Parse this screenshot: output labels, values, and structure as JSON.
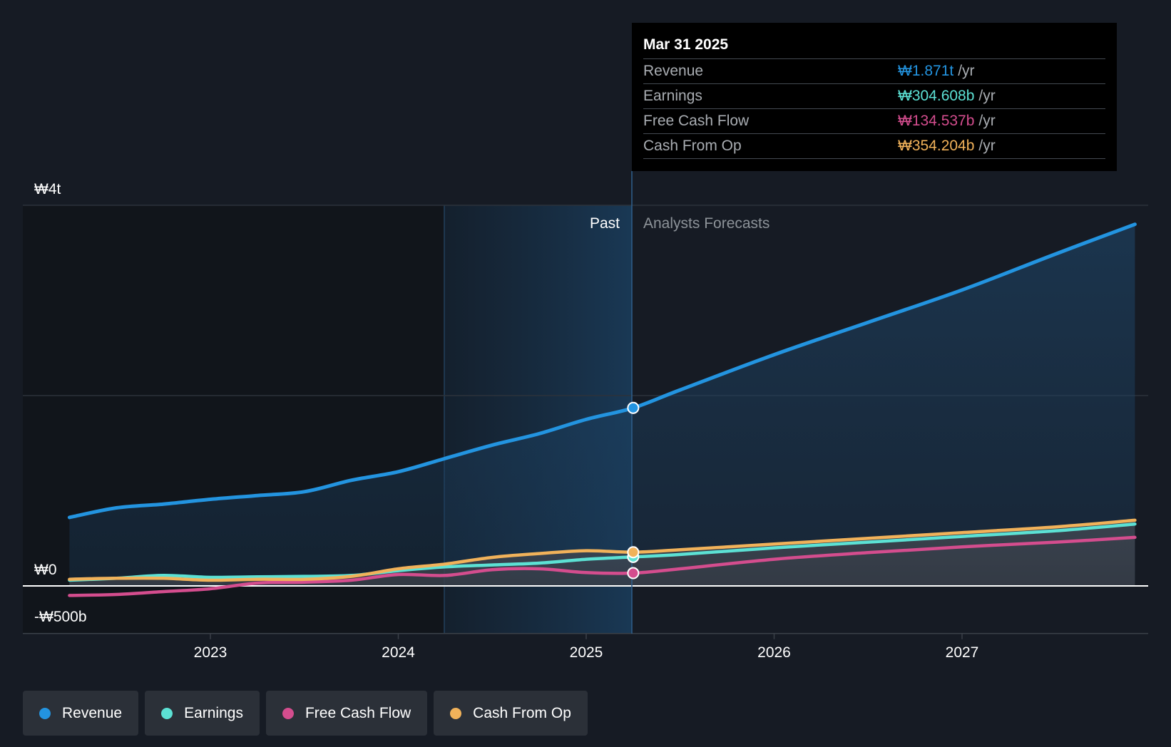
{
  "chart_data": {
    "type": "area",
    "x_ticks": [
      "2023",
      "2024",
      "2025",
      "2026",
      "2027"
    ],
    "y_ticks": [
      "₩4t",
      "₩0",
      "-₩500b"
    ],
    "ylim": [
      -500,
      4000
    ],
    "y_unit": "₩ billions",
    "past_label": "Past",
    "forecast_label": "Analysts Forecasts",
    "highlight_date": 2025.25,
    "series": [
      {
        "name": "Revenue",
        "color": "#2394e0",
        "points": [
          [
            2022.25,
            720
          ],
          [
            2022.5,
            820
          ],
          [
            2022.75,
            860
          ],
          [
            2023.0,
            910
          ],
          [
            2023.25,
            950
          ],
          [
            2023.5,
            990
          ],
          [
            2023.75,
            1110
          ],
          [
            2024.0,
            1200
          ],
          [
            2024.25,
            1340
          ],
          [
            2024.5,
            1480
          ],
          [
            2024.75,
            1600
          ],
          [
            2025.0,
            1750
          ],
          [
            2025.25,
            1871
          ],
          [
            2025.5,
            2060
          ],
          [
            2026.0,
            2430
          ],
          [
            2026.5,
            2770
          ],
          [
            2027.0,
            3110
          ],
          [
            2027.5,
            3490
          ],
          [
            2027.92,
            3800
          ]
        ]
      },
      {
        "name": "Earnings",
        "color": "#5ce1d4",
        "points": [
          [
            2022.25,
            60
          ],
          [
            2022.5,
            80
          ],
          [
            2022.75,
            110
          ],
          [
            2023.0,
            90
          ],
          [
            2023.25,
            95
          ],
          [
            2023.5,
            100
          ],
          [
            2023.75,
            110
          ],
          [
            2024.0,
            160
          ],
          [
            2024.25,
            200
          ],
          [
            2024.5,
            220
          ],
          [
            2024.75,
            240
          ],
          [
            2025.0,
            280
          ],
          [
            2025.25,
            304.608
          ],
          [
            2025.5,
            330
          ],
          [
            2026.0,
            400
          ],
          [
            2026.5,
            460
          ],
          [
            2027.0,
            520
          ],
          [
            2027.5,
            580
          ],
          [
            2027.92,
            650
          ]
        ]
      },
      {
        "name": "Free Cash Flow",
        "color": "#d44d8e",
        "points": [
          [
            2022.25,
            -100
          ],
          [
            2022.5,
            -90
          ],
          [
            2022.75,
            -60
          ],
          [
            2023.0,
            -30
          ],
          [
            2023.25,
            30
          ],
          [
            2023.5,
            40
          ],
          [
            2023.75,
            60
          ],
          [
            2024.0,
            120
          ],
          [
            2024.25,
            110
          ],
          [
            2024.5,
            170
          ],
          [
            2024.75,
            180
          ],
          [
            2025.0,
            140
          ],
          [
            2025.25,
            134.537
          ],
          [
            2025.5,
            180
          ],
          [
            2026.0,
            280
          ],
          [
            2026.5,
            350
          ],
          [
            2027.0,
            410
          ],
          [
            2027.5,
            460
          ],
          [
            2027.92,
            510
          ]
        ]
      },
      {
        "name": "Cash From Op",
        "color": "#f1b25a",
        "points": [
          [
            2022.25,
            70
          ],
          [
            2022.5,
            80
          ],
          [
            2022.75,
            80
          ],
          [
            2023.0,
            60
          ],
          [
            2023.25,
            70
          ],
          [
            2023.5,
            70
          ],
          [
            2023.75,
            100
          ],
          [
            2024.0,
            180
          ],
          [
            2024.25,
            230
          ],
          [
            2024.5,
            300
          ],
          [
            2024.75,
            340
          ],
          [
            2025.0,
            370
          ],
          [
            2025.25,
            354.204
          ],
          [
            2025.5,
            380
          ],
          [
            2026.0,
            440
          ],
          [
            2026.5,
            500
          ],
          [
            2027.0,
            560
          ],
          [
            2027.5,
            620
          ],
          [
            2027.92,
            690
          ]
        ]
      }
    ]
  },
  "tooltip": {
    "date": "Mar 31 2025",
    "rows": [
      {
        "label": "Revenue",
        "value": "₩1.871t",
        "unit": "/yr",
        "color": "#2394e0"
      },
      {
        "label": "Earnings",
        "value": "₩304.608b",
        "unit": "/yr",
        "color": "#5ce1d4"
      },
      {
        "label": "Free Cash Flow",
        "value": "₩134.537b",
        "unit": "/yr",
        "color": "#d44d8e"
      },
      {
        "label": "Cash From Op",
        "value": "₩354.204b",
        "unit": "/yr",
        "color": "#f1b25a"
      }
    ]
  },
  "legend": [
    {
      "label": "Revenue",
      "color": "#2394e0"
    },
    {
      "label": "Earnings",
      "color": "#5ce1d4"
    },
    {
      "label": "Free Cash Flow",
      "color": "#d44d8e"
    },
    {
      "label": "Cash From Op",
      "color": "#f1b25a"
    }
  ]
}
